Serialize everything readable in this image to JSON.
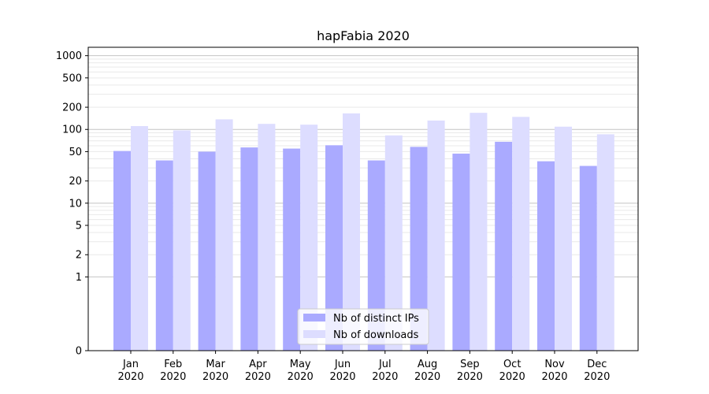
{
  "chart_data": {
    "type": "bar",
    "title": "hapFabia 2020",
    "xlabel": "",
    "ylabel": "",
    "yscale": "symlog",
    "ylim": [
      0,
      1300
    ],
    "yticks": [
      0,
      1,
      2,
      5,
      10,
      20,
      50,
      100,
      200,
      500,
      1000
    ],
    "ytick_labels": [
      "0",
      "1",
      "2",
      "5",
      "10",
      "20",
      "50",
      "100",
      "200",
      "500",
      "1000"
    ],
    "categories": [
      "Jan\n2020",
      "Feb\n2020",
      "Mar\n2020",
      "Apr\n2020",
      "May\n2020",
      "Jun\n2020",
      "Jul\n2020",
      "Aug\n2020",
      "Sep\n2020",
      "Oct\n2020",
      "Nov\n2020",
      "Dec\n2020"
    ],
    "category_lines": [
      [
        "Jan",
        "2020"
      ],
      [
        "Feb",
        "2020"
      ],
      [
        "Mar",
        "2020"
      ],
      [
        "Apr",
        "2020"
      ],
      [
        "May",
        "2020"
      ],
      [
        "Jun",
        "2020"
      ],
      [
        "Jul",
        "2020"
      ],
      [
        "Aug",
        "2020"
      ],
      [
        "Sep",
        "2020"
      ],
      [
        "Oct",
        "2020"
      ],
      [
        "Nov",
        "2020"
      ],
      [
        "Dec",
        "2020"
      ]
    ],
    "series": [
      {
        "name": "Nb of distinct IPs",
        "color": "#aaaaff",
        "values": [
          51,
          38,
          50,
          57,
          55,
          61,
          38,
          58,
          47,
          68,
          37,
          32
        ]
      },
      {
        "name": "Nb of downloads",
        "color": "#ddddff",
        "values": [
          111,
          97,
          137,
          119,
          116,
          165,
          83,
          132,
          168,
          148,
          109,
          86
        ]
      }
    ],
    "legend_position": "lower-center",
    "grid": "horizontal"
  }
}
